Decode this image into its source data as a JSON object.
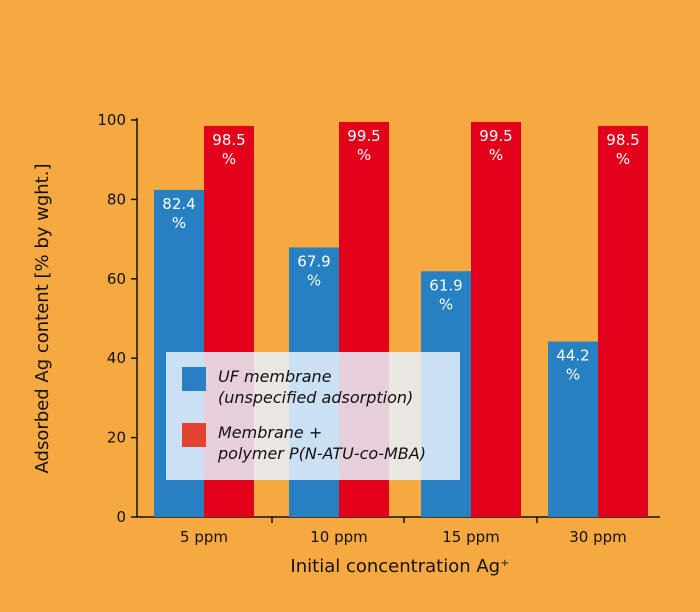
{
  "chart_data": {
    "type": "bar",
    "xlabel": "Initial concentration Ag⁺",
    "ylabel": "Adsorbed Ag content [% by wght.]",
    "categories": [
      "5 ppm",
      "10 ppm",
      "15 ppm",
      "30 ppm"
    ],
    "ylim": [
      0,
      100
    ],
    "yticks": [
      "0",
      "20",
      "40",
      "60",
      "80",
      "100"
    ],
    "grid": false,
    "legend_position": "center-left",
    "series": [
      {
        "name": "UF membrane\n(unspecified adsorption)",
        "color": "#2680c2",
        "values": [
          82.4,
          67.9,
          61.9,
          44.2
        ],
        "labels": [
          "82.4\n%",
          "67.9\n%",
          "61.9\n%",
          "44.2\n%"
        ]
      },
      {
        "name": "Membrane +\npolymer P(N-ATU-co-MBA)",
        "color": "#e3001b",
        "values": [
          98.5,
          99.5,
          99.5,
          98.5
        ],
        "labels": [
          "98.5\n%",
          "99.5\n%",
          "99.5\n%",
          "98.5\n%"
        ]
      }
    ]
  },
  "colors": {
    "background": "#f7a941",
    "series_uf": "#2680c2",
    "series_polymer": "#e3001b",
    "legend_uf_swatch": "#2a7fc4",
    "legend_polymer_swatch": "#e44231"
  }
}
